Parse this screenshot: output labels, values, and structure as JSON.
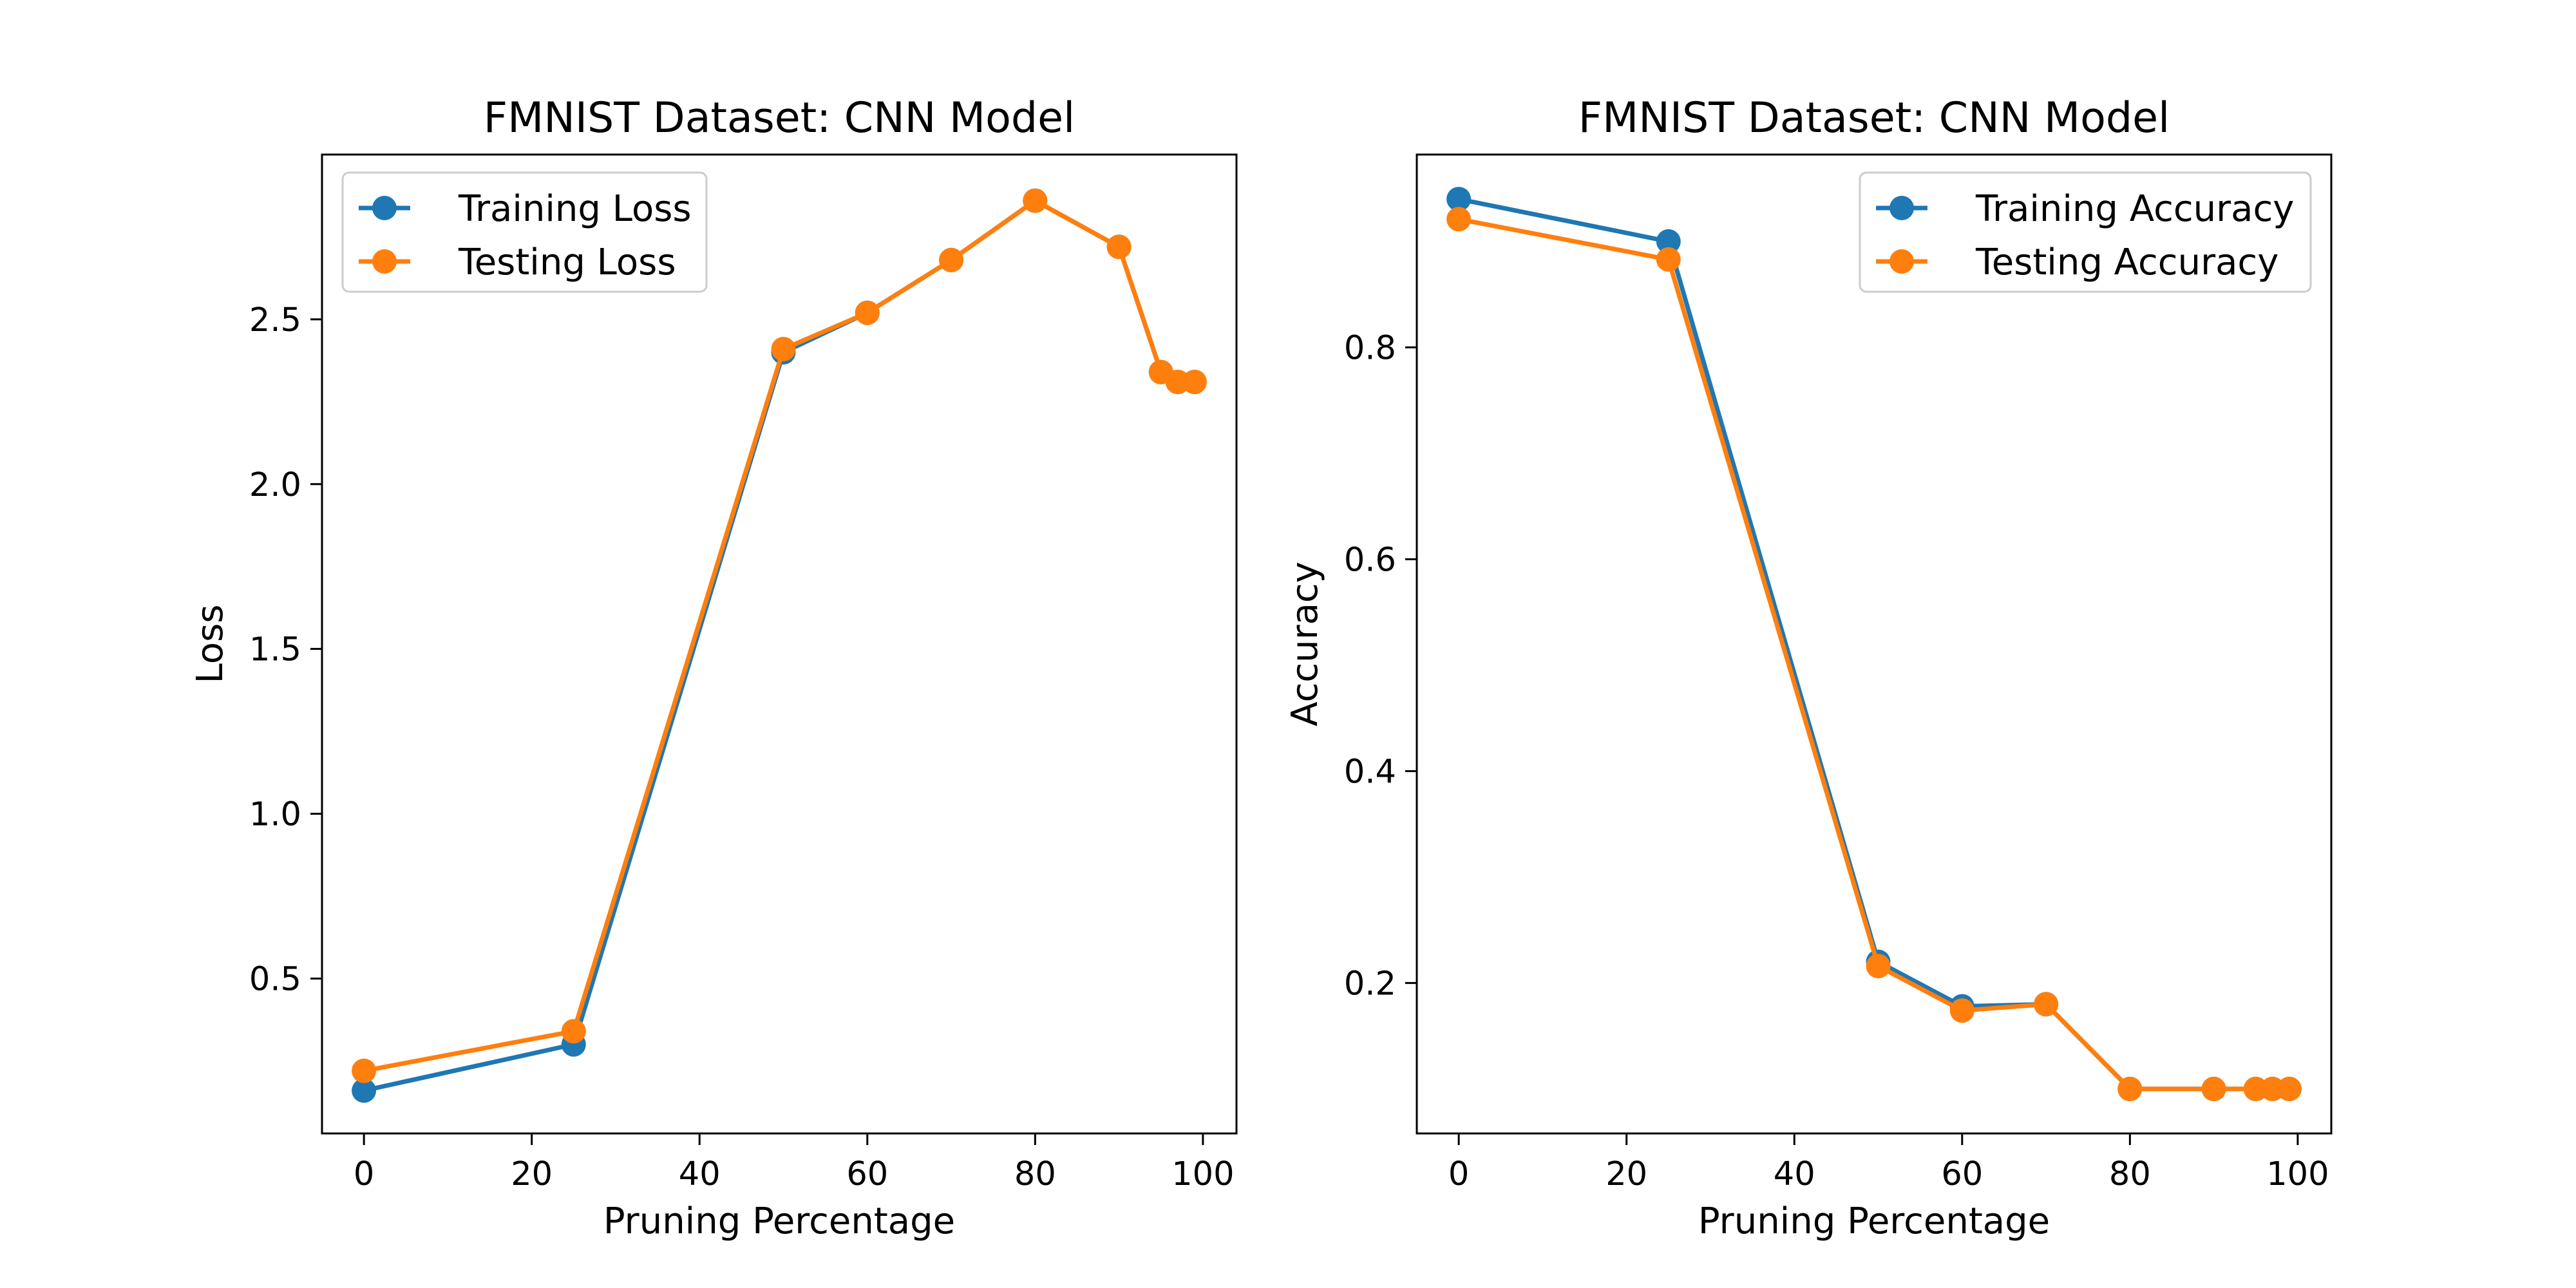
{
  "chart_data": [
    {
      "type": "line",
      "title": "FMNIST Dataset: CNN Model",
      "xlabel": "Pruning Percentage",
      "ylabel": "Loss",
      "xlim": [
        -5,
        104
      ],
      "ylim": [
        0.03,
        3.0
      ],
      "xticks": [
        0,
        20,
        40,
        60,
        80,
        100
      ],
      "yticks": [
        0.5,
        1.0,
        1.5,
        2.0,
        2.5
      ],
      "xtick_labels": [
        "0",
        "20",
        "40",
        "60",
        "80",
        "100"
      ],
      "ytick_labels": [
        "0.5",
        "1.0",
        "1.5",
        "2.0",
        "2.5"
      ],
      "grid": false,
      "legend_position": "top-left",
      "x": [
        0,
        25,
        50,
        60,
        70,
        80,
        90,
        95,
        97,
        99
      ],
      "series": [
        {
          "name": "Training Loss",
          "color": "#1f77b4",
          "marker": "circle",
          "values": [
            0.16,
            0.3,
            2.4,
            2.52,
            2.68,
            2.86,
            2.72,
            2.34,
            2.31,
            2.31
          ]
        },
        {
          "name": "Testing Loss",
          "color": "#ff7f0e",
          "marker": "circle",
          "values": [
            0.22,
            0.34,
            2.41,
            2.52,
            2.68,
            2.86,
            2.72,
            2.34,
            2.31,
            2.31
          ]
        }
      ]
    },
    {
      "type": "line",
      "title": "FMNIST Dataset: CNN Model",
      "xlabel": "Pruning Percentage",
      "ylabel": "Accuracy",
      "xlim": [
        -5,
        104
      ],
      "ylim": [
        0.058,
        0.982
      ],
      "xticks": [
        0,
        20,
        40,
        60,
        80,
        100
      ],
      "yticks": [
        0.2,
        0.4,
        0.6,
        0.8
      ],
      "xtick_labels": [
        "0",
        "20",
        "40",
        "60",
        "80",
        "100"
      ],
      "ytick_labels": [
        "0.2",
        "0.4",
        "0.6",
        "0.8"
      ],
      "grid": false,
      "legend_position": "top-right",
      "x": [
        0,
        25,
        50,
        60,
        70,
        80,
        90,
        95,
        97,
        99
      ],
      "series": [
        {
          "name": "Training Accuracy",
          "color": "#1f77b4",
          "marker": "circle",
          "values": [
            0.94,
            0.9,
            0.22,
            0.178,
            0.18,
            0.1,
            0.1,
            0.1,
            0.1,
            0.1
          ]
        },
        {
          "name": "Testing Accuracy",
          "color": "#ff7f0e",
          "marker": "circle",
          "values": [
            0.921,
            0.883,
            0.216,
            0.174,
            0.18,
            0.1,
            0.1,
            0.1,
            0.1,
            0.1
          ]
        }
      ]
    }
  ]
}
